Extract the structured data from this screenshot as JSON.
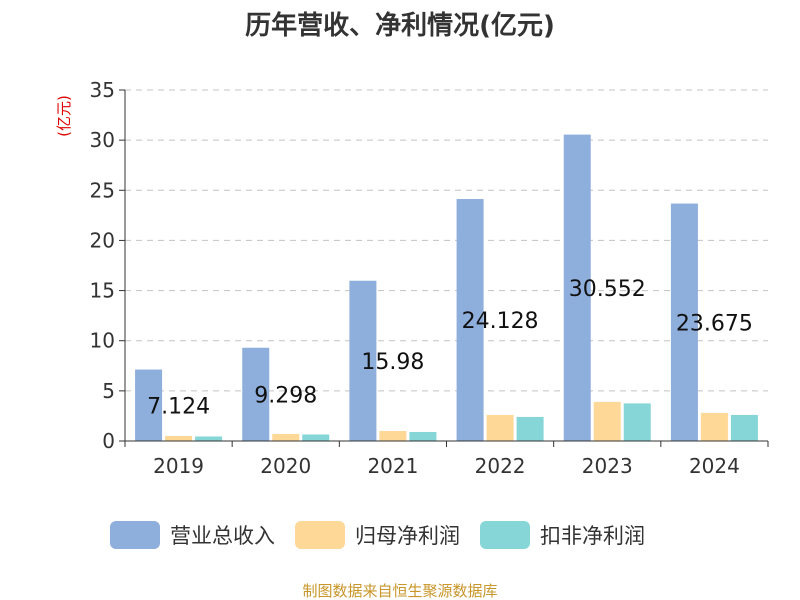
{
  "chart_data": {
    "type": "bar",
    "title": "历年营收、净利情况(亿元)",
    "ylabel": "(亿元)",
    "categories": [
      "2019",
      "2020",
      "2021",
      "2022",
      "2023",
      "2024"
    ],
    "ylim": [
      0,
      35
    ],
    "yticks": [
      0,
      5,
      10,
      15,
      20,
      25,
      30,
      35
    ],
    "grid": true,
    "legend_position": "bottom",
    "series": [
      {
        "name": "营业总收入",
        "color": "#8eaedc",
        "values": [
          7.124,
          9.298,
          15.98,
          24.128,
          30.552,
          23.675
        ],
        "labels": [
          "7.124",
          "9.298",
          "15.98",
          "24.128",
          "30.552",
          "23.675"
        ]
      },
      {
        "name": "归母净利润",
        "color": "#fdd896",
        "values": [
          0.5,
          0.7,
          1.0,
          2.6,
          3.9,
          2.8
        ]
      },
      {
        "name": "扣非净利润",
        "color": "#86d6d8",
        "values": [
          0.45,
          0.65,
          0.9,
          2.4,
          3.75,
          2.6
        ]
      }
    ],
    "source": "制图数据来自恒生聚源数据库"
  }
}
